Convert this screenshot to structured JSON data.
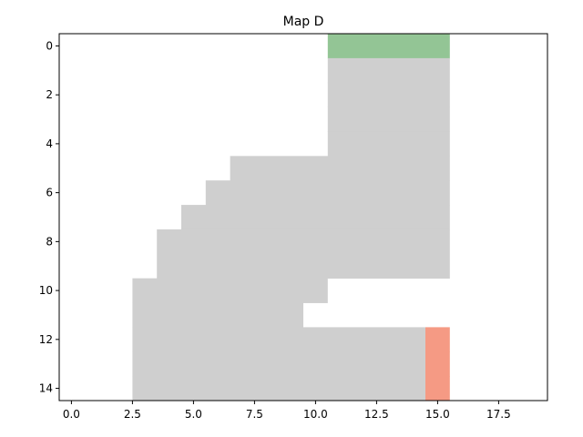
{
  "chart_data": {
    "type": "heatmap",
    "title": "Map D",
    "xlabel": "",
    "ylabel": "",
    "xlim": [
      -0.5,
      19.5
    ],
    "ylim": [
      14.5,
      -0.5
    ],
    "y_inverted": true,
    "grid": false,
    "x_ticks": [
      0.0,
      2.5,
      5.0,
      7.5,
      10.0,
      12.5,
      15.0,
      17.5
    ],
    "x_tick_labels": [
      "0.0",
      "2.5",
      "5.0",
      "7.5",
      "10.0",
      "12.5",
      "15.0",
      "17.5"
    ],
    "y_ticks": [
      0,
      2,
      4,
      6,
      8,
      10,
      12,
      14
    ],
    "y_tick_labels": [
      "0",
      "2",
      "4",
      "6",
      "8",
      "10",
      "12",
      "14"
    ],
    "colors": {
      "free": "#cfcfcf",
      "start": "#93c595",
      "goal": "#f59a84",
      "empty": "#ffffff"
    },
    "legend": "none",
    "rows": [
      {
        "y": 0,
        "free": [],
        "start": [
          11,
          15
        ],
        "goal": null
      },
      {
        "y": 1,
        "free": [
          11,
          15
        ],
        "start": null,
        "goal": null
      },
      {
        "y": 2,
        "free": [
          11,
          15
        ],
        "start": null,
        "goal": null
      },
      {
        "y": 3,
        "free": [
          11,
          15
        ],
        "start": null,
        "goal": null
      },
      {
        "y": 4,
        "free": [
          11,
          15
        ],
        "start": null,
        "goal": null
      },
      {
        "y": 5,
        "free": [
          7,
          15
        ],
        "start": null,
        "goal": null
      },
      {
        "y": 6,
        "free": [
          6,
          15
        ],
        "start": null,
        "goal": null
      },
      {
        "y": 7,
        "free": [
          5,
          15
        ],
        "start": null,
        "goal": null
      },
      {
        "y": 8,
        "free": [
          4,
          15
        ],
        "start": null,
        "goal": null
      },
      {
        "y": 9,
        "free": [
          4,
          15
        ],
        "start": null,
        "goal": null
      },
      {
        "y": 10,
        "free": [
          3,
          10
        ],
        "start": null,
        "goal": null
      },
      {
        "y": 11,
        "free": [
          3,
          9
        ],
        "start": null,
        "goal": null
      },
      {
        "y": 12,
        "free": [
          3,
          14
        ],
        "start": null,
        "goal": [
          15,
          15
        ]
      },
      {
        "y": 13,
        "free": [
          3,
          14
        ],
        "start": null,
        "goal": [
          15,
          15
        ]
      },
      {
        "y": 14,
        "free": [
          3,
          14
        ],
        "start": null,
        "goal": [
          15,
          15
        ]
      }
    ]
  }
}
